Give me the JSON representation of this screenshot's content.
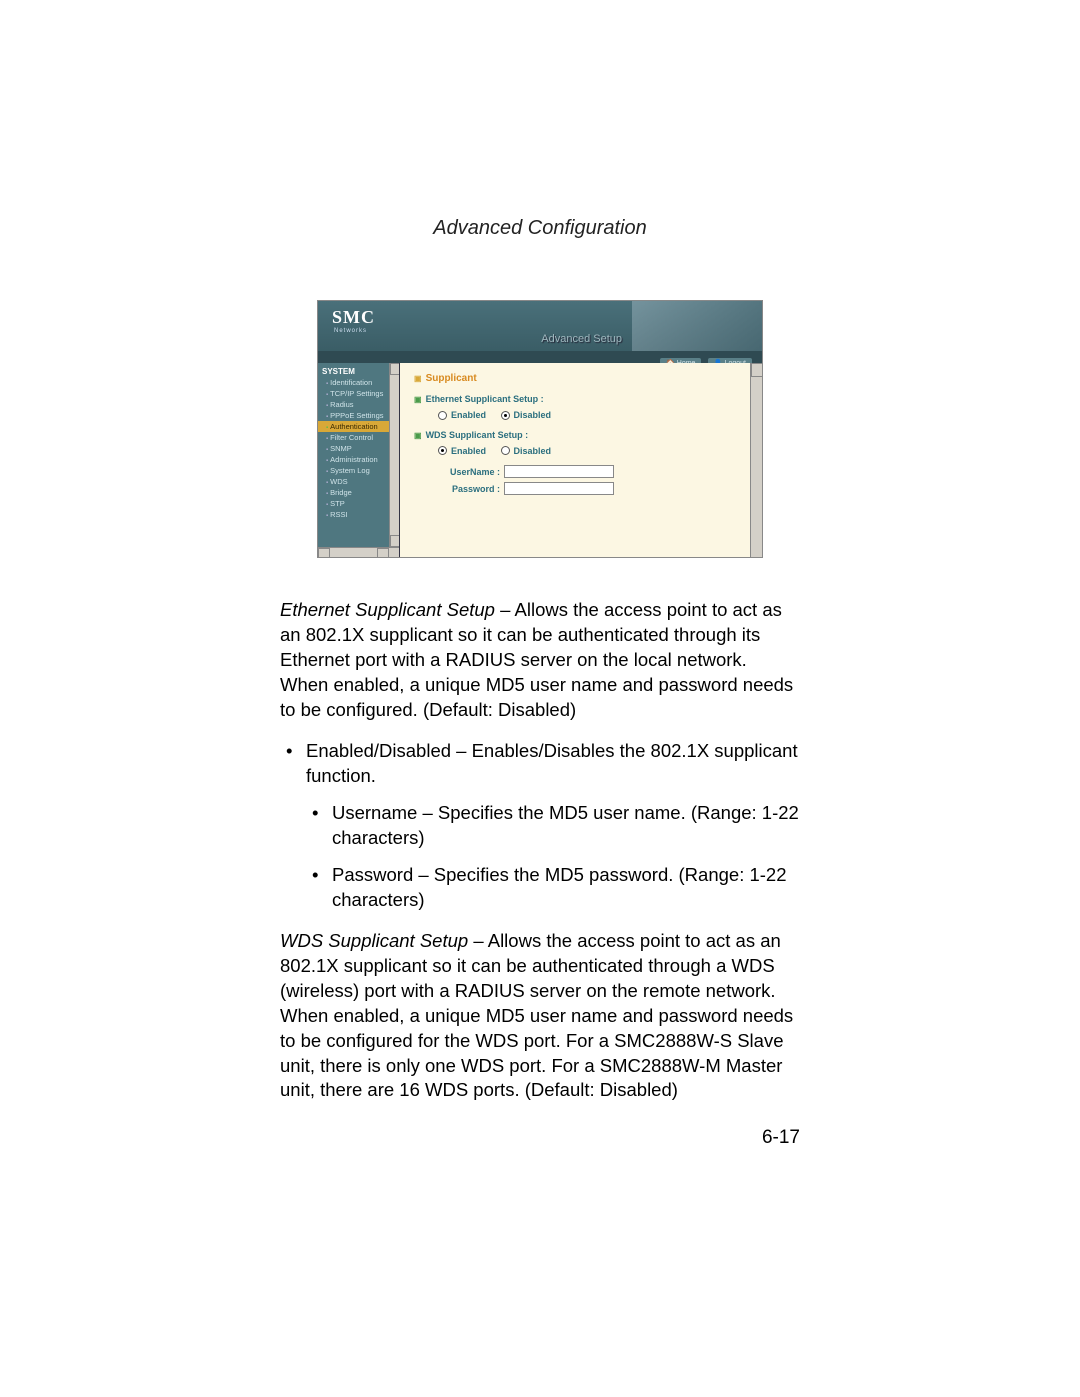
{
  "header": "Advanced Configuration",
  "screenshot": {
    "logo": "SMC",
    "logo_sub": "Networks",
    "header_title": "Advanced Setup",
    "tabs": {
      "home": "Home",
      "logout": "Logout"
    },
    "sidebar": {
      "heading": "SYSTEM",
      "items": [
        {
          "label": "Identification",
          "active": false
        },
        {
          "label": "TCP/IP Settings",
          "active": false
        },
        {
          "label": "Radius",
          "active": false
        },
        {
          "label": "PPPoE Settings",
          "active": false
        },
        {
          "label": "Authentication",
          "active": true
        },
        {
          "label": "Filter Control",
          "active": false
        },
        {
          "label": "SNMP",
          "active": false
        },
        {
          "label": "Administration",
          "active": false
        },
        {
          "label": "System Log",
          "active": false
        },
        {
          "label": "WDS",
          "active": false
        },
        {
          "label": "Bridge",
          "active": false
        },
        {
          "label": "STP",
          "active": false
        },
        {
          "label": "RSSI",
          "active": false
        }
      ]
    },
    "content": {
      "title": "Supplicant",
      "ethernet": {
        "title": "Ethernet Supplicant Setup :",
        "enabled_label": "Enabled",
        "disabled_label": "Disabled",
        "selected": "disabled"
      },
      "wds": {
        "title": "WDS Supplicant Setup :",
        "enabled_label": "Enabled",
        "disabled_label": "Disabled",
        "selected": "enabled",
        "username_label": "UserName :",
        "password_label": "Password :",
        "username_value": "",
        "password_value": ""
      }
    }
  },
  "text": {
    "p1_lead": "Ethernet Supplicant Setup",
    "p1_body": " – Allows the access point to act as an 802.1X supplicant so it can be authenticated through its Ethernet port with a RADIUS server on the local network. When enabled, a unique MD5 user name and password needs to be configured. (Default: Disabled)",
    "b1": "Enabled/Disabled – Enables/Disables the 802.1X supplicant function.",
    "b1a": "Username – Specifies the MD5 user name. (Range: 1-22 characters)",
    "b1b": "Password – Specifies the MD5 password. (Range: 1-22 characters)",
    "p2_lead": "WDS Supplicant Setup",
    "p2_body": " – Allows the access point to act as an 802.1X supplicant so it can be authenticated through a WDS (wireless) port with a RADIUS server on the remote network. When enabled, a unique MD5 user name and password needs to be configured for the WDS port. For a SMC2888W-S Slave unit, there is only one WDS port. For a SMC2888W-M Master unit, there are 16 WDS ports. (Default: Disabled)"
  },
  "page_number": "6-17",
  "colors": {
    "header_bg_top": "#4a707a",
    "header_bg_bottom": "#3a5d66",
    "sidebar_bg": "#4f7780",
    "sidebar_active": "#d8a838",
    "content_bg": "#fcf7e3",
    "section_orange": "#d88a1f",
    "section_teal": "#2b6f7f"
  }
}
